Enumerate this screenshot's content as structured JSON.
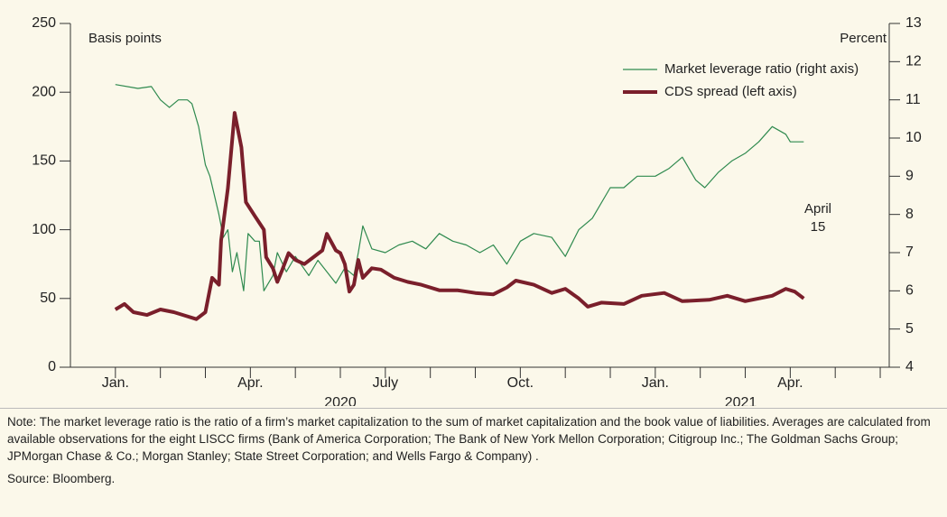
{
  "chart_data": {
    "type": "line",
    "y_label": "Basis points",
    "y2_label": "Percent",
    "annotation": [
      "April",
      "15"
    ],
    "xlim": [
      -1,
      17.2
    ],
    "xticks": [
      {
        "value": 0,
        "label": "Jan."
      },
      {
        "value": 3,
        "label": "Apr."
      },
      {
        "value": 6,
        "label": "July"
      },
      {
        "value": 9,
        "label": "Oct."
      },
      {
        "value": 12,
        "label": "Jan."
      },
      {
        "value": 15,
        "label": "Apr."
      }
    ],
    "xminor_ticks": [
      1,
      2,
      4,
      5,
      7,
      8,
      10,
      11,
      13,
      14,
      16,
      17
    ],
    "year_labels": [
      {
        "value": 5,
        "label": "2020"
      },
      {
        "value": 13.9,
        "label": "2021"
      }
    ],
    "ylim": [
      0,
      250
    ],
    "yticks": [
      0,
      50,
      100,
      150,
      200,
      250
    ],
    "y2lim": [
      4,
      13
    ],
    "y2ticks": [
      4,
      5,
      6,
      7,
      8,
      9,
      10,
      11,
      12,
      13
    ],
    "legend": "top-right",
    "series": [
      {
        "name": "Market leverage ratio (right axis)",
        "color": "#2f8a4f",
        "axis": "y2",
        "width": 1.2,
        "x": [
          0,
          0.5,
          0.8,
          1.0,
          1.2,
          1.4,
          1.6,
          1.7,
          1.85,
          2.0,
          2.1,
          2.3,
          2.4,
          2.5,
          2.6,
          2.7,
          2.85,
          2.95,
          3.1,
          3.2,
          3.3,
          3.5,
          3.6,
          3.8,
          4.0,
          4.3,
          4.5,
          4.7,
          4.9,
          5.1,
          5.3,
          5.4,
          5.5,
          5.7,
          6.0,
          6.3,
          6.6,
          6.9,
          7.2,
          7.5,
          7.8,
          8.1,
          8.4,
          8.7,
          9.0,
          9.3,
          9.7,
          10.0,
          10.3,
          10.6,
          11.0,
          11.3,
          11.6,
          12.0,
          12.3,
          12.6,
          12.9,
          13.1,
          13.4,
          13.7,
          14.0,
          14.3,
          14.6,
          14.9,
          15.0,
          15.3
        ],
        "values": [
          11.4,
          11.3,
          11.35,
          11.0,
          10.8,
          11.0,
          11.0,
          10.9,
          10.3,
          9.3,
          9.0,
          8.0,
          7.4,
          7.6,
          6.5,
          7.0,
          6.0,
          7.5,
          7.3,
          7.3,
          6.0,
          6.4,
          7.0,
          6.5,
          6.9,
          6.4,
          6.8,
          6.5,
          6.2,
          6.6,
          6.4,
          7.0,
          7.7,
          7.1,
          7.0,
          7.2,
          7.3,
          7.1,
          7.5,
          7.3,
          7.2,
          7.0,
          7.2,
          6.7,
          7.3,
          7.5,
          7.4,
          6.9,
          7.6,
          7.9,
          8.7,
          8.7,
          9.0,
          9.0,
          9.2,
          9.5,
          8.9,
          8.7,
          9.1,
          9.4,
          9.6,
          9.9,
          10.3,
          10.1,
          9.9,
          9.9
        ]
      },
      {
        "name": "CDS spread (left axis)",
        "color": "#7a1f2b",
        "width": 4,
        "x": [
          0,
          0.2,
          0.4,
          0.7,
          1.0,
          1.3,
          1.6,
          1.8,
          2.0,
          2.15,
          2.3,
          2.35,
          2.5,
          2.65,
          2.8,
          2.9,
          3.1,
          3.2,
          3.3,
          3.35,
          3.5,
          3.6,
          3.7,
          3.85,
          4.0,
          4.2,
          4.4,
          4.6,
          4.7,
          4.9,
          5.0,
          5.1,
          5.2,
          5.3,
          5.4,
          5.5,
          5.7,
          5.9,
          6.2,
          6.5,
          6.8,
          7.2,
          7.6,
          8.0,
          8.4,
          8.7,
          8.9,
          9.3,
          9.7,
          10.0,
          10.3,
          10.5,
          10.8,
          11.3,
          11.7,
          12.2,
          12.6,
          13.2,
          13.6,
          14.0,
          14.3,
          14.6,
          14.9,
          15.1,
          15.3
        ],
        "values": [
          42,
          46,
          40,
          38,
          42,
          40,
          37,
          35,
          40,
          65,
          60,
          92,
          130,
          185,
          160,
          120,
          110,
          105,
          100,
          80,
          72,
          62,
          70,
          83,
          78,
          75,
          80,
          85,
          97,
          85,
          83,
          75,
          55,
          60,
          78,
          65,
          72,
          71,
          65,
          62,
          60,
          56,
          56,
          54,
          53,
          58,
          63,
          60,
          54,
          57,
          50,
          44,
          47,
          46,
          52,
          54,
          48,
          49,
          52,
          48,
          50,
          52,
          57,
          55,
          50
        ]
      }
    ]
  },
  "note": "Note: The market leverage ratio is the ratio of a firm’s market capitalization to the sum of market capitalization and the book value of liabilities. Averages are calculated from available observations for the eight LISCC firms (Bank of America Corporation; The Bank of New York Mellon Corporation; Citigroup Inc.; The Goldman Sachs Group; JPMorgan Chase & Co.; Morgan Stanley; State Street Corporation; and Wells Fargo & Company) .",
  "source": "Source: Bloomberg."
}
